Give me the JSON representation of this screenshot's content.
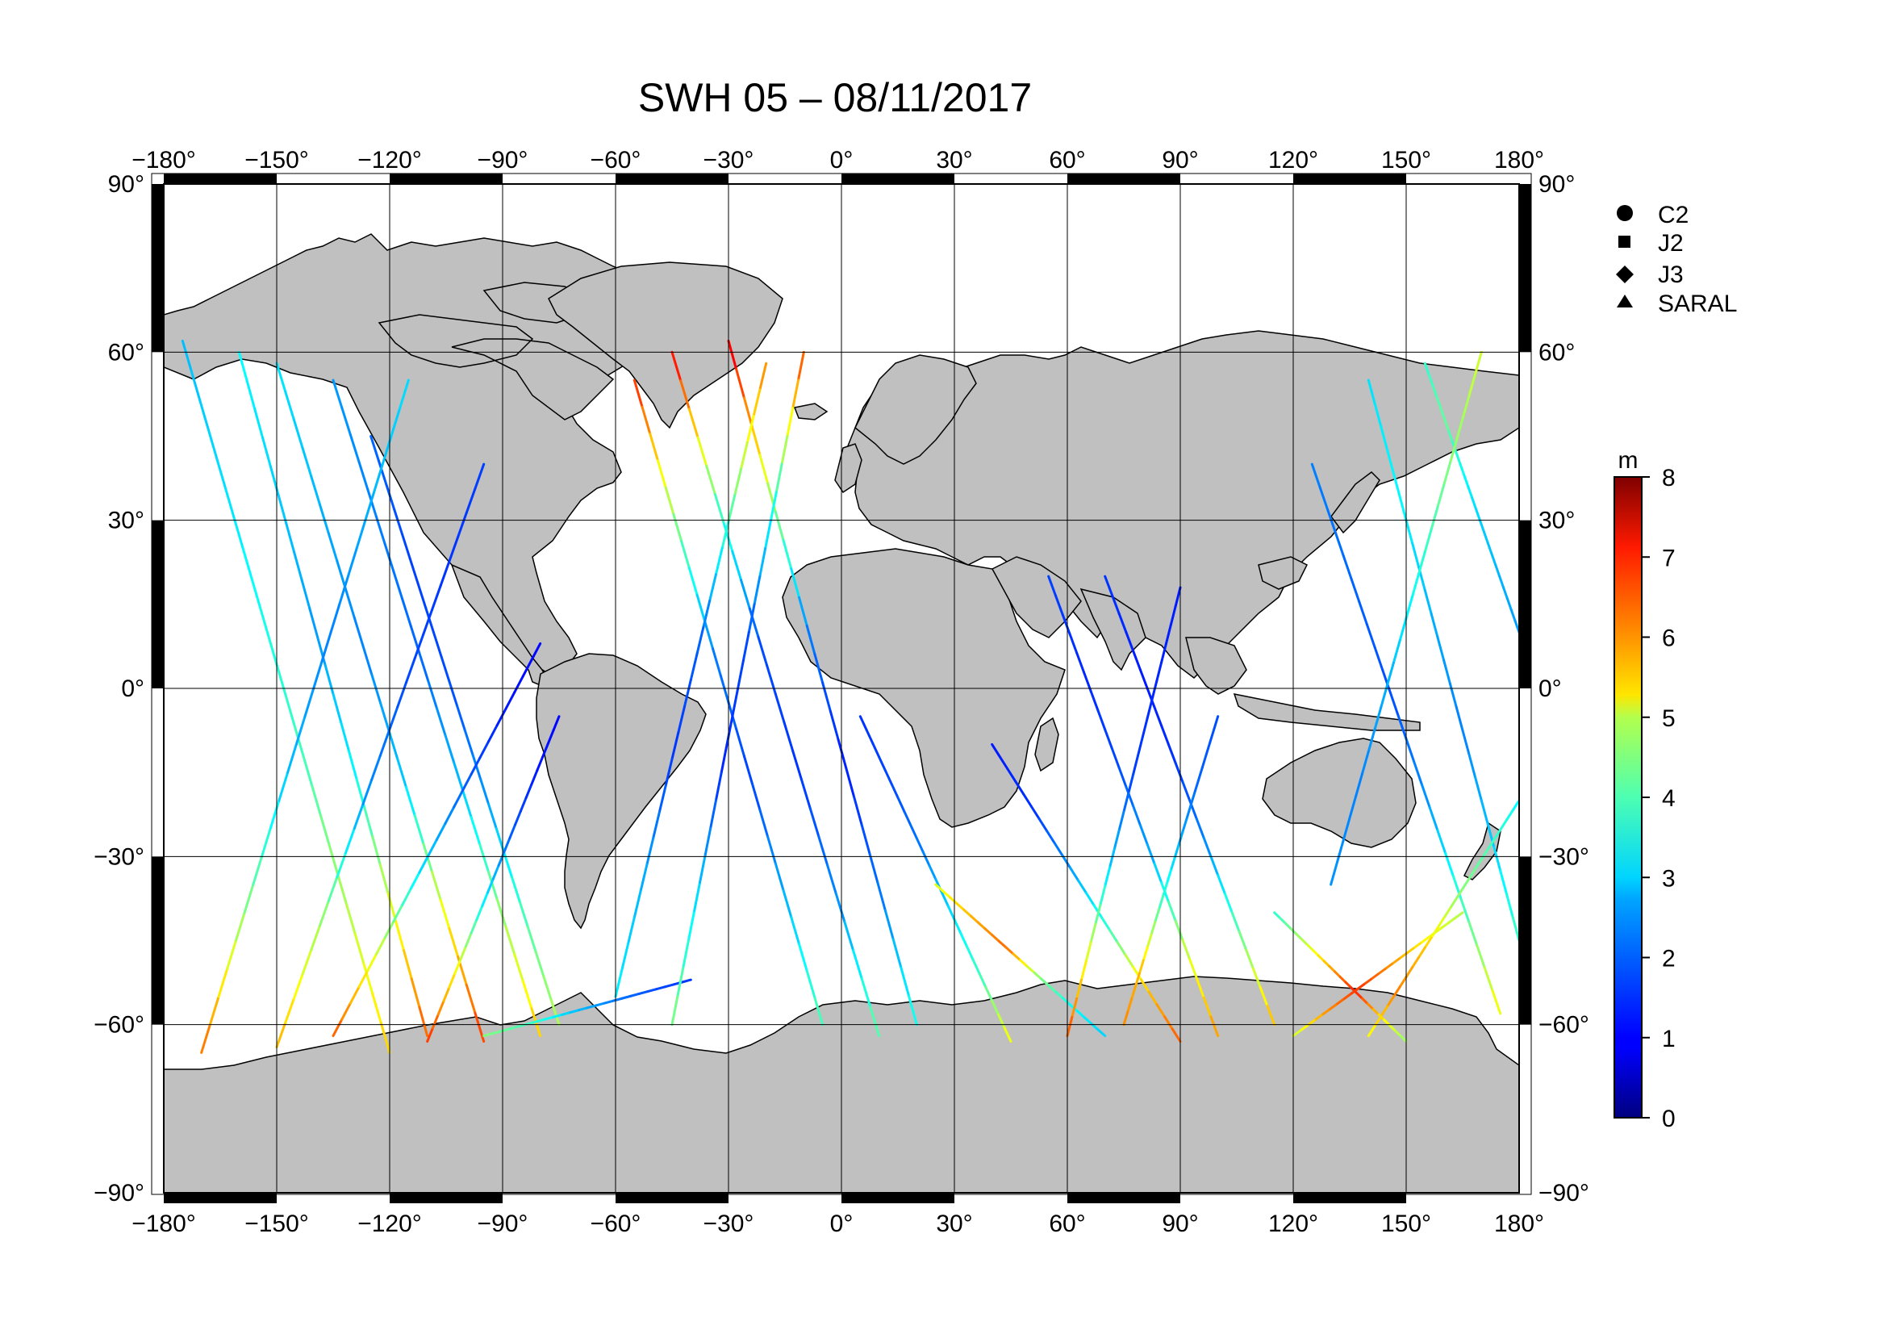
{
  "title": "SWH 05 – 08/11/2017",
  "map": {
    "projection": "equirectangular",
    "lon_range": [
      -180,
      180
    ],
    "lat_range": [
      -90,
      90
    ],
    "lon_ticks": [
      -180,
      -150,
      -120,
      -90,
      -60,
      -30,
      0,
      30,
      60,
      90,
      120,
      150,
      180
    ],
    "lat_ticks": [
      90,
      60,
      30,
      0,
      -30,
      -60,
      -90
    ],
    "lon_tick_labels": [
      "−180°",
      "−150°",
      "−120°",
      "−90°",
      "−60°",
      "−30°",
      "0°",
      "30°",
      "60°",
      "90°",
      "120°",
      "150°",
      "180°"
    ],
    "lat_tick_labels": [
      "90°",
      "60°",
      "30°",
      "0°",
      "−30°",
      "−60°",
      "−90°"
    ],
    "grid": true,
    "land_color": "#c0c0c0",
    "ocean_color": "#ffffff"
  },
  "legend": {
    "placement": "top-right",
    "items": [
      {
        "symbol": "circle",
        "label": "C2"
      },
      {
        "symbol": "square",
        "label": "J2"
      },
      {
        "symbol": "diamond",
        "label": "J3"
      },
      {
        "symbol": "triangle",
        "label": "SARAL"
      }
    ]
  },
  "colorbar": {
    "unit": "m",
    "min": 0,
    "max": 8,
    "ticks": [
      "0",
      "1",
      "2",
      "3",
      "4",
      "5",
      "6",
      "7",
      "8"
    ],
    "colormap": "jet"
  },
  "chart_data": {
    "type": "scatter",
    "title": "SWH 05 – 08/11/2017",
    "variable_unit": "m",
    "value_range": [
      0,
      8
    ],
    "description_of_marks": "along-track satellite altimetry significant wave height",
    "tracks": [
      {
        "lon0": -175,
        "lat0": 62,
        "lon1": -120,
        "lat1": -65,
        "swh": [
          2.5,
          2.8,
          3.2,
          3.6,
          4.5,
          5.5
        ]
      },
      {
        "lon0": -160,
        "lat0": 60,
        "lon1": -110,
        "lat1": -62,
        "swh": [
          3.0,
          2.6,
          2.2,
          3.0,
          4.8,
          6.5
        ]
      },
      {
        "lon0": -150,
        "lat0": 58,
        "lon1": -95,
        "lat1": -63,
        "swh": [
          2.8,
          2.4,
          2.0,
          2.6,
          5.0,
          6.8
        ]
      },
      {
        "lon0": -135,
        "lat0": 55,
        "lon1": -80,
        "lat1": -62,
        "swh": [
          2.2,
          2.0,
          1.8,
          2.5,
          4.2,
          5.6
        ]
      },
      {
        "lon0": -125,
        "lat0": 45,
        "lon1": -75,
        "lat1": -60,
        "swh": [
          1.8,
          1.5,
          1.6,
          2.2,
          3.6,
          4.5
        ]
      },
      {
        "lon0": -170,
        "lat0": -65,
        "lon1": -115,
        "lat1": 55,
        "swh": [
          6.0,
          4.0,
          2.5,
          2.0,
          2.4,
          2.8
        ]
      },
      {
        "lon0": -150,
        "lat0": -64,
        "lon1": -95,
        "lat1": 40,
        "swh": [
          5.5,
          4.2,
          2.2,
          1.6,
          1.4,
          1.5
        ]
      },
      {
        "lon0": -135,
        "lat0": -62,
        "lon1": -80,
        "lat1": 8,
        "swh": [
          6.2,
          4.6,
          2.8,
          1.8,
          1.2,
          1.0
        ]
      },
      {
        "lon0": -110,
        "lat0": -63,
        "lon1": -75,
        "lat1": -5,
        "swh": [
          6.5,
          5.0,
          3.0,
          1.8,
          1.2,
          1.0
        ]
      },
      {
        "lon0": -95,
        "lat0": -62,
        "lon1": -40,
        "lat1": -52,
        "swh": [
          4.0,
          3.5,
          2.6,
          2.0,
          1.6,
          1.4
        ]
      },
      {
        "lon0": -55,
        "lat0": 55,
        "lon1": -5,
        "lat1": -60,
        "swh": [
          6.5,
          4.0,
          2.0,
          1.5,
          2.5,
          3.8
        ]
      },
      {
        "lon0": -45,
        "lat0": 60,
        "lon1": 10,
        "lat1": -62,
        "swh": [
          6.8,
          3.6,
          1.6,
          1.4,
          2.2,
          4.0
        ]
      },
      {
        "lon0": -30,
        "lat0": 62,
        "lon1": 20,
        "lat1": -60,
        "swh": [
          7.0,
          4.4,
          2.0,
          1.2,
          2.0,
          3.4
        ]
      },
      {
        "lon0": -20,
        "lat0": 58,
        "lon1": -60,
        "lat1": -55,
        "swh": [
          5.8,
          3.8,
          1.8,
          1.4,
          2.4,
          3.0
        ]
      },
      {
        "lon0": -10,
        "lat0": 60,
        "lon1": -45,
        "lat1": -60,
        "swh": [
          6.2,
          3.2,
          1.6,
          1.3,
          2.8,
          4.2
        ]
      },
      {
        "lon0": 5,
        "lat0": -5,
        "lon1": 45,
        "lat1": -63,
        "swh": [
          1.4,
          1.6,
          2.0,
          2.8,
          3.6,
          5.2
        ]
      },
      {
        "lon0": 25,
        "lat0": -35,
        "lon1": 70,
        "lat1": -62,
        "swh": [
          4.8,
          5.6,
          6.2,
          4.0,
          3.0,
          2.6
        ]
      },
      {
        "lon0": 40,
        "lat0": -10,
        "lon1": 90,
        "lat1": -63,
        "swh": [
          1.2,
          1.4,
          2.2,
          3.4,
          5.4,
          6.4
        ]
      },
      {
        "lon0": 55,
        "lat0": 20,
        "lon1": 100,
        "lat1": -62,
        "swh": [
          1.5,
          1.3,
          1.6,
          2.4,
          4.6,
          6.0
        ]
      },
      {
        "lon0": 70,
        "lat0": 20,
        "lon1": 115,
        "lat1": -60,
        "swh": [
          1.4,
          1.2,
          1.4,
          2.2,
          4.0,
          5.8
        ]
      },
      {
        "lon0": 90,
        "lat0": 18,
        "lon1": 60,
        "lat1": -62,
        "swh": [
          1.2,
          1.3,
          1.5,
          2.6,
          4.8,
          6.6
        ]
      },
      {
        "lon0": 100,
        "lat0": -5,
        "lon1": 75,
        "lat1": -60,
        "swh": [
          1.6,
          1.8,
          2.4,
          3.6,
          5.5,
          6.0
        ]
      },
      {
        "lon0": 115,
        "lat0": -40,
        "lon1": 150,
        "lat1": -63,
        "swh": [
          3.4,
          4.4,
          5.6,
          6.8,
          5.2,
          4.0
        ]
      },
      {
        "lon0": 125,
        "lat0": 40,
        "lon1": 175,
        "lat1": -58,
        "swh": [
          2.0,
          1.8,
          1.6,
          2.2,
          3.6,
          5.2
        ]
      },
      {
        "lon0": 140,
        "lat0": 55,
        "lon1": 180,
        "lat1": -45,
        "swh": [
          2.8,
          3.0,
          2.4,
          2.0,
          2.6,
          3.6
        ]
      },
      {
        "lon0": 155,
        "lat0": 58,
        "lon1": 180,
        "lat1": 10,
        "swh": [
          3.4,
          3.8,
          3.0,
          2.6,
          2.4,
          2.2
        ]
      },
      {
        "lon0": 170,
        "lat0": 60,
        "lon1": 130,
        "lat1": -35,
        "swh": [
          4.6,
          4.0,
          3.2,
          2.4,
          2.0,
          2.2
        ]
      },
      {
        "lon0": 180,
        "lat0": -20,
        "lon1": 140,
        "lat1": -62,
        "swh": [
          3.0,
          3.6,
          4.2,
          5.4,
          6.0,
          4.8
        ]
      },
      {
        "lon0": 165,
        "lat0": -40,
        "lon1": 120,
        "lat1": -62,
        "swh": [
          4.4,
          5.0,
          5.8,
          6.6,
          5.8,
          4.4
        ]
      }
    ]
  }
}
